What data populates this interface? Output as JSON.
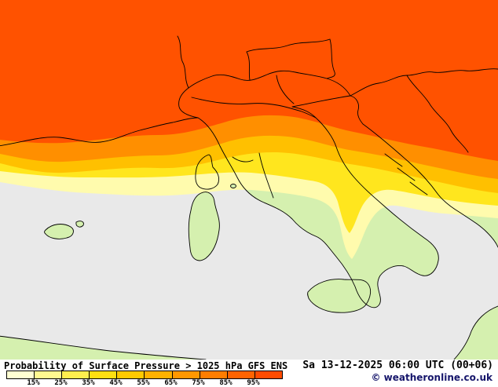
{
  "header": {
    "title": "Probability of Surface Pressure > 1025 hPa GFS ENS",
    "datetime": "Sa 13-12-2025 06:00 UTC (00+06)"
  },
  "legend": {
    "labels": [
      "15%",
      "25%",
      "35%",
      "45%",
      "55%",
      "65%",
      "75%",
      "85%",
      "95%"
    ],
    "colors": [
      "#ffffd2",
      "#fff990",
      "#ffee4e",
      "#ffdf12",
      "#ffc900",
      "#ffb100",
      "#ff9700",
      "#ff7d00",
      "#ff6300",
      "#ff4b00"
    ]
  },
  "footer": {
    "copyright": "© weatheronline.co.uk"
  },
  "map": {
    "colors": {
      "sea": "#e9e9e9",
      "land": "#d5f0af",
      "border": "#000000",
      "band_15": "#fffbad",
      "band_35": "#ffe61e",
      "band_55": "#ffc000",
      "band_75": "#ff8f00",
      "band_95": "#ff5200"
    }
  }
}
